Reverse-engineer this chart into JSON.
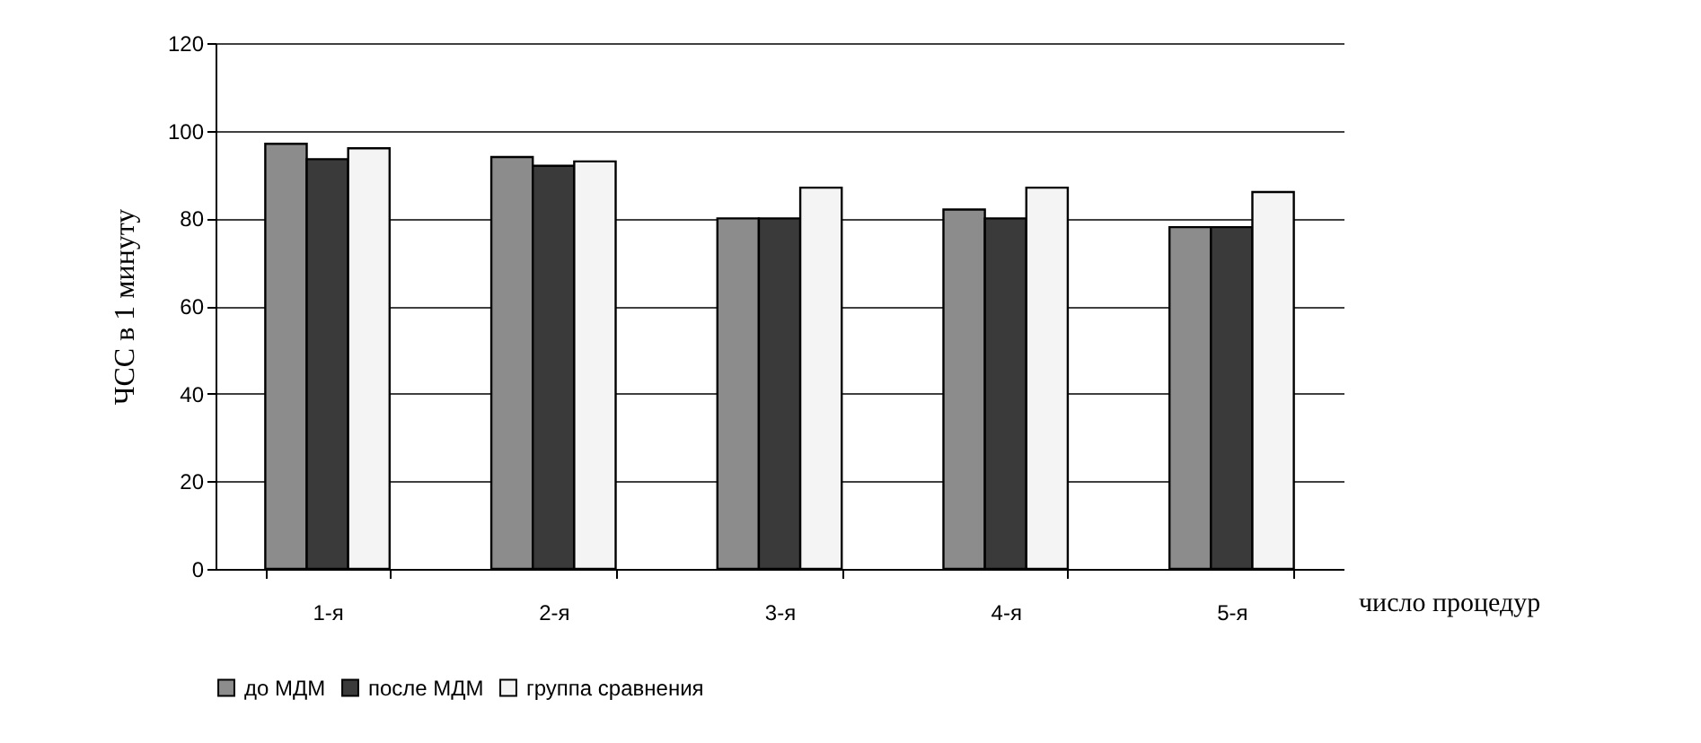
{
  "chart_data": {
    "type": "bar",
    "xlabel": "число процедур",
    "ylabel": "ЧСС в 1 минуту",
    "categories": [
      "1-я",
      "2-я",
      "3-я",
      "4-я",
      "5-я"
    ],
    "series": [
      {
        "name": "до МДМ",
        "color": "#8c8c8c",
        "values": [
          97,
          94,
          80,
          82,
          78
        ]
      },
      {
        "name": "после МДМ",
        "color": "#3a3a3a",
        "values": [
          93.5,
          92,
          80,
          80,
          78
        ]
      },
      {
        "name": "группа сравнения",
        "color": "#f4f4f4",
        "values": [
          96,
          93,
          87,
          87,
          86
        ]
      }
    ],
    "ylim": [
      0,
      120
    ],
    "yticks": [
      0,
      20,
      40,
      60,
      80,
      100,
      120
    ],
    "grid": "y",
    "legend": "bottom"
  }
}
